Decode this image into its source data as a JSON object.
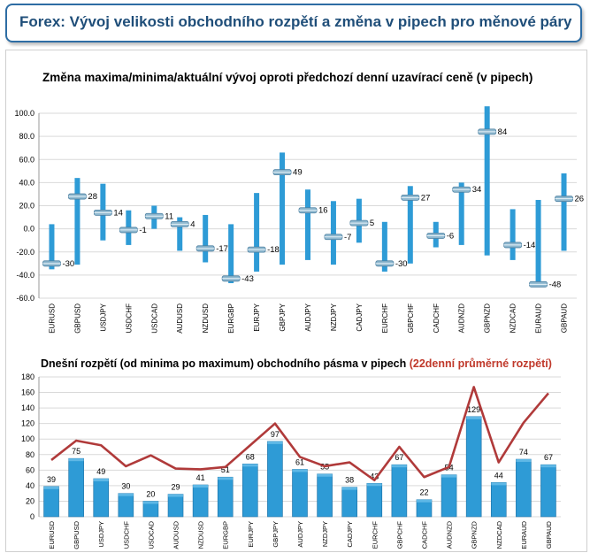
{
  "header": {
    "title": "Forex: Vývoj velikosti obchodního rozpětí a změna v pipech pro měnové páry"
  },
  "colors": {
    "accent": "#2e6da4",
    "bar": "#2e9bd6",
    "line": "#b03a3a"
  },
  "chart_data": [
    {
      "type": "bar",
      "subtype": "high-low-current",
      "title": "Změna maxima/minima/aktuální vývoj oproti předchozí denní uzavírací ceně (v pipech)",
      "categories": [
        "EURUSD",
        "GBPUSD",
        "USDJPY",
        "USDCHF",
        "USDCAD",
        "AUDUSD",
        "NZDUSD",
        "EURGBP",
        "EURJPY",
        "GBPJPY",
        "AUDJPY",
        "NZDJPY",
        "CADJPY",
        "EURCHF",
        "GBPCHF",
        "CADCHF",
        "AUDNZD",
        "GBPNZD",
        "NZDCAD",
        "EURAUD",
        "GBPAUD"
      ],
      "series": [
        {
          "values_high": [
            4,
            44,
            39,
            16,
            20,
            10,
            12,
            4,
            31,
            66,
            34,
            24,
            26,
            6,
            37,
            6,
            40,
            106,
            17,
            25,
            48
          ]
        },
        {
          "values_low": [
            -35,
            -31,
            -10,
            -14,
            0,
            -19,
            -29,
            -47,
            -37,
            -31,
            -27,
            -31,
            -12,
            -37,
            -30,
            -16,
            -14,
            -23,
            -27,
            -49,
            -19
          ]
        },
        {
          "values_current": [
            -30,
            28,
            14,
            -1,
            11,
            4,
            -17,
            -43,
            -18,
            49,
            16,
            -7,
            5,
            -30,
            27,
            -6,
            34,
            84,
            -14,
            -48,
            26
          ]
        }
      ],
      "data_labels": [
        "-30",
        "28",
        "14",
        "-1",
        "11",
        "4",
        "-17",
        "-43",
        "-18",
        "49",
        "16",
        "-7",
        "5",
        "-30",
        "27",
        "-6",
        "34",
        "84",
        "-14",
        "-48",
        "26"
      ],
      "ylim": [
        -60,
        100
      ],
      "yticks": [
        "100.0",
        "80.0",
        "60.0",
        "40.0",
        "20.0",
        "0.0",
        "-20.0",
        "-40.0",
        "-60.0"
      ],
      "grid": true
    },
    {
      "type": "bar",
      "title": "Dnešní rozpětí (od minima po maximum) obchodního pásma v pipech",
      "title_highlight": "(22denní průměrné rozpětí)",
      "categories": [
        "EURUSD",
        "GBPUSD",
        "USDJPY",
        "USDCHF",
        "USDCAD",
        "AUDUSD",
        "NZDUSD",
        "EURGBP",
        "EURJPY",
        "GBPJPY",
        "AUDJPY",
        "NZDJPY",
        "CADJPY",
        "EURCHF",
        "GBPCHF",
        "CADCHF",
        "AUDNZD",
        "GBPNZD",
        "NZDCAD",
        "EURAUD",
        "GBPAUD"
      ],
      "series": [
        {
          "name": "",
          "type": "bar",
          "values": [
            39,
            75,
            49,
            30,
            20,
            29,
            41,
            51,
            68,
            97,
            61,
            55,
            38,
            43,
            67,
            22,
            54,
            129,
            44,
            74,
            67
          ]
        },
        {
          "name": "",
          "type": "line",
          "values": [
            73,
            98,
            92,
            65,
            79,
            62,
            61,
            64,
            92,
            120,
            77,
            65,
            70,
            47,
            90,
            51,
            64,
            167,
            70,
            121,
            159
          ]
        }
      ],
      "data_labels": [
        "39",
        "75",
        "49",
        "30",
        "20",
        "29",
        "41",
        "51",
        "68",
        "97",
        "61",
        "55",
        "38",
        "43",
        "67",
        "22",
        "54",
        "129",
        "44",
        "74",
        "67"
      ],
      "ylim": [
        0,
        180
      ],
      "yticks": [
        "180",
        "160",
        "140",
        "120",
        "100",
        "80",
        "60",
        "40",
        "20",
        "0"
      ],
      "grid": true
    }
  ]
}
